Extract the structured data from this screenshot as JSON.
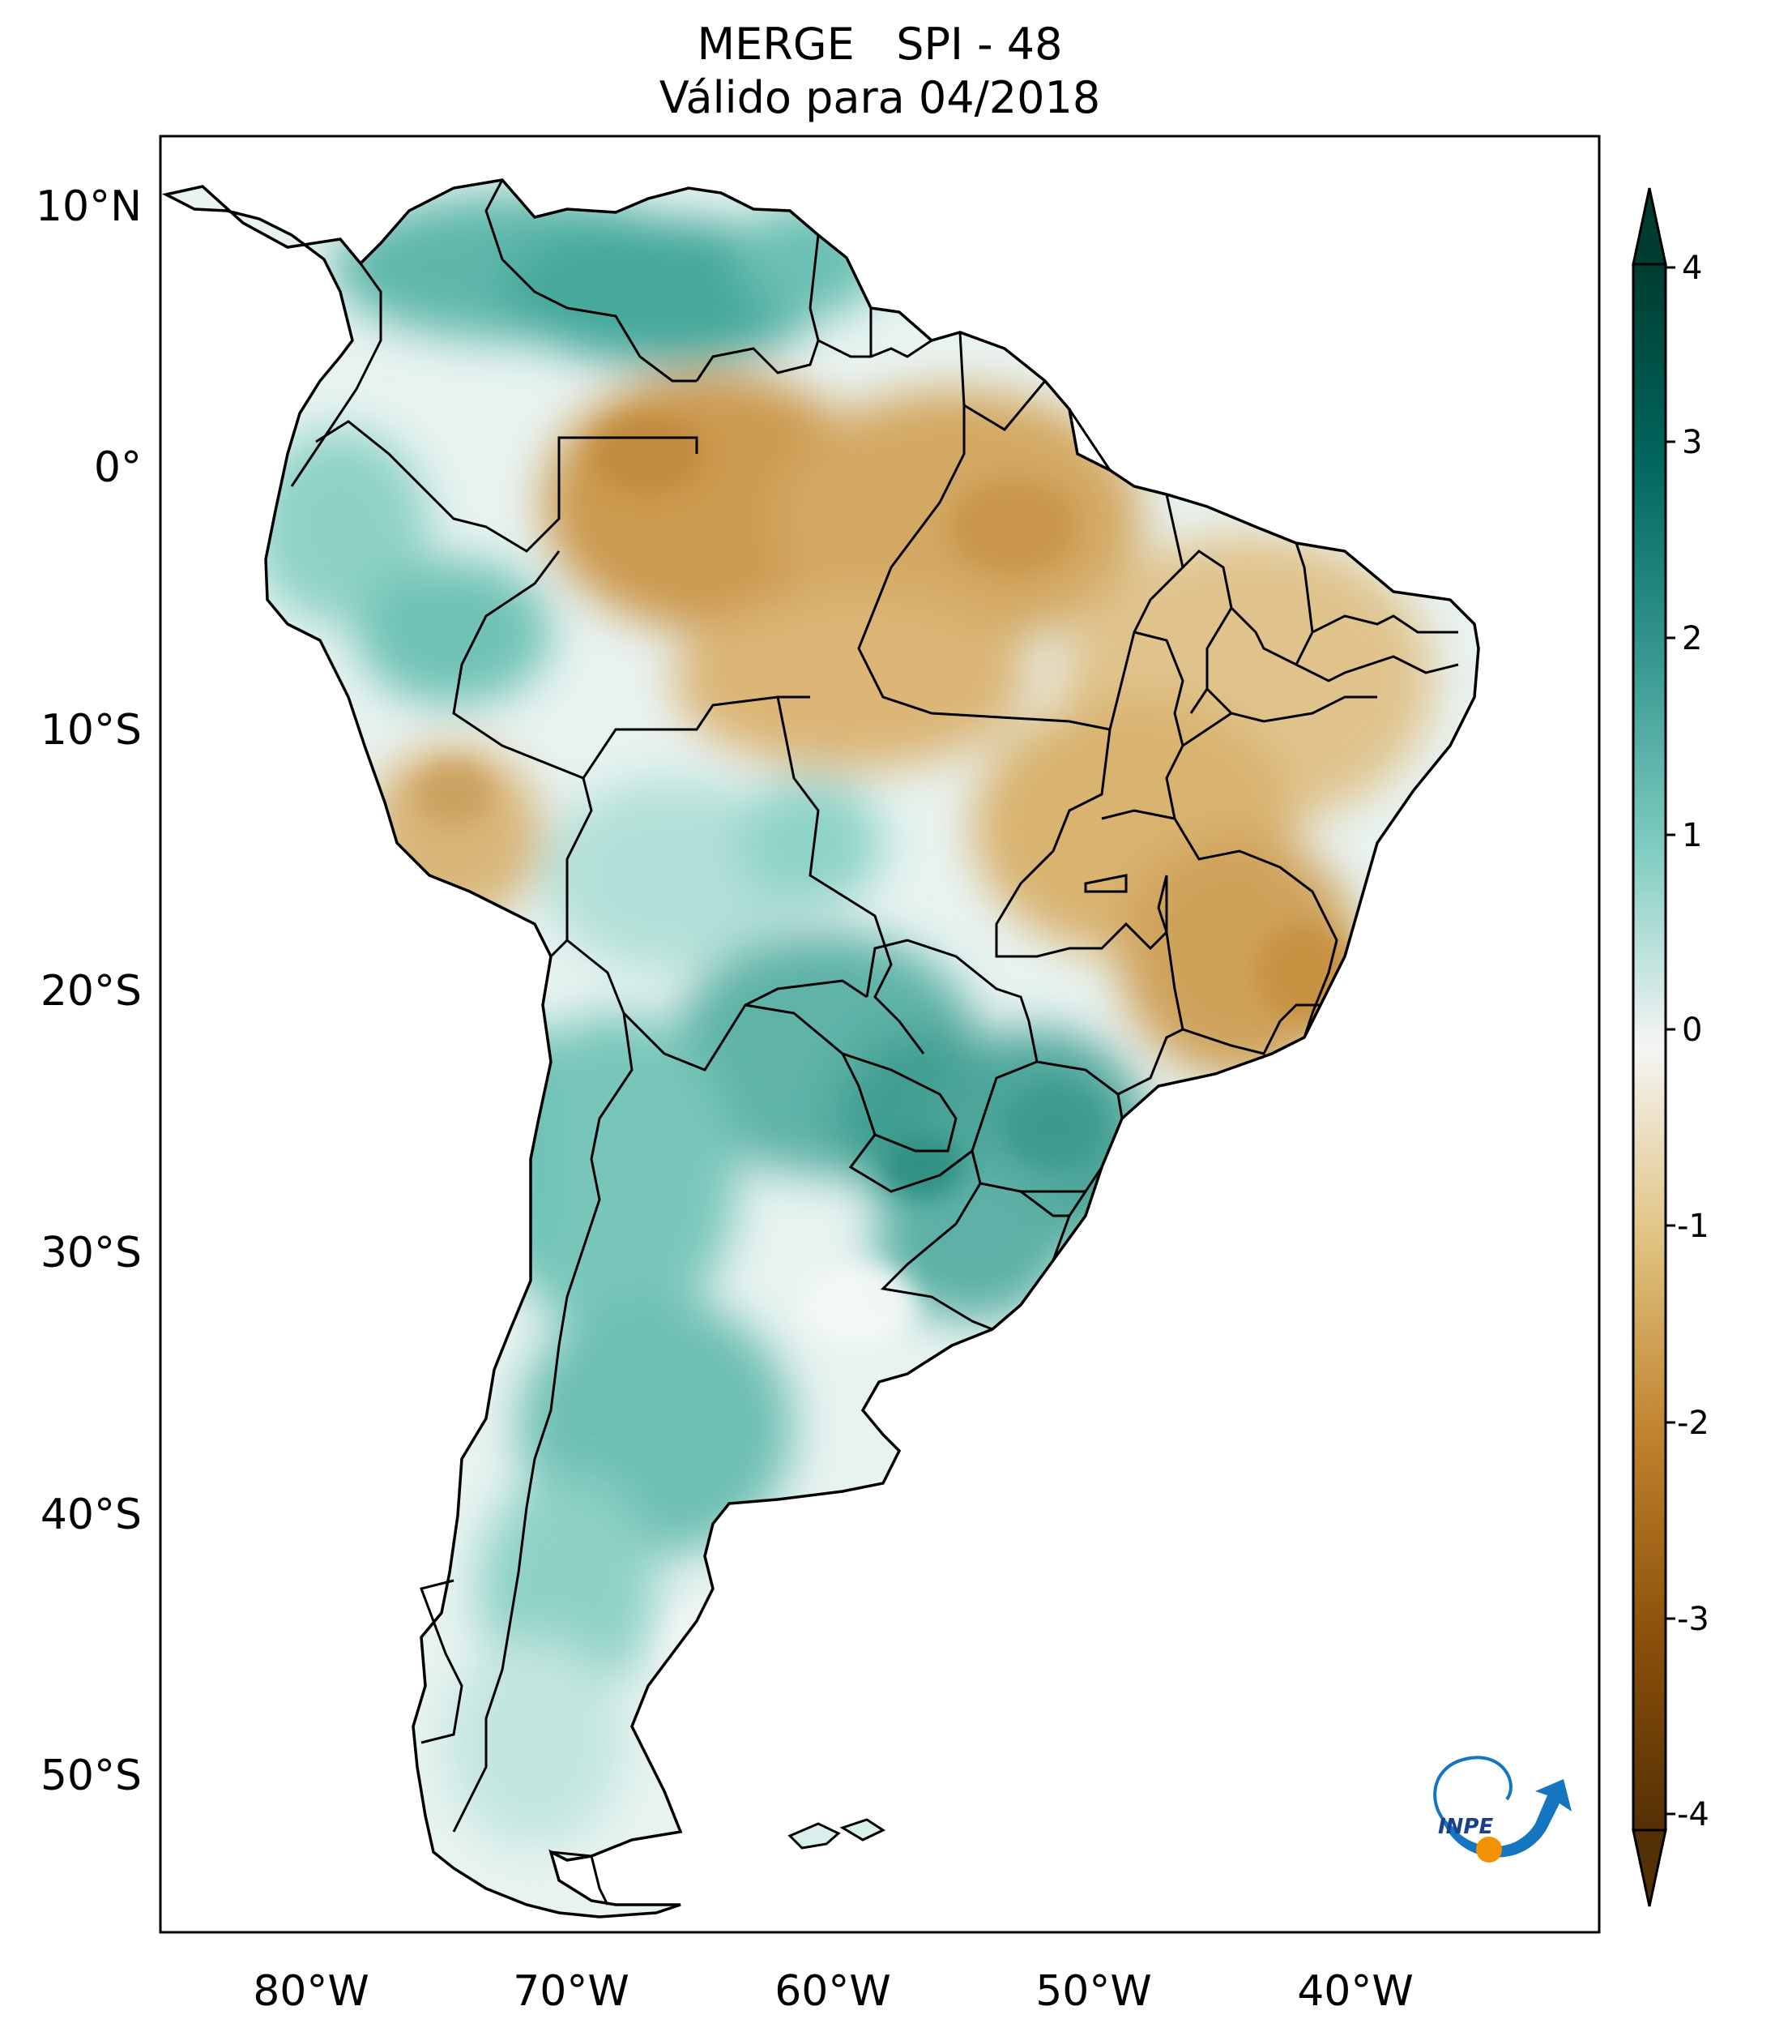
{
  "title": {
    "line1": "MERGE   SPI - 48",
    "line2": "Válido para 04/2018"
  },
  "map": {
    "region": "South America",
    "lon_range": [
      -85,
      -30
    ],
    "lat_range": [
      -56,
      13
    ],
    "lon_ticks": [
      {
        "value": -80,
        "label": "80°W"
      },
      {
        "value": -70,
        "label": "70°W"
      },
      {
        "value": -60,
        "label": "60°W"
      },
      {
        "value": -50,
        "label": "50°W"
      },
      {
        "value": -40,
        "label": "40°W"
      }
    ],
    "lat_ticks": [
      {
        "value": 10,
        "label": "10°N"
      },
      {
        "value": 0,
        "label": "0°"
      },
      {
        "value": -10,
        "label": "10°S"
      },
      {
        "value": -20,
        "label": "20°S"
      },
      {
        "value": -30,
        "label": "30°S"
      },
      {
        "value": -40,
        "label": "40°S"
      },
      {
        "value": -50,
        "label": "50°S"
      }
    ],
    "regions": [
      {
        "name": "northern-colombia-venezuela",
        "spi": 1.6
      },
      {
        "name": "amazon-north",
        "spi": -1.5
      },
      {
        "name": "northeast-brazil",
        "spi": -1.2
      },
      {
        "name": "central-brazil",
        "spi": -1.3
      },
      {
        "name": "minas-gerais",
        "spi": -1.7
      },
      {
        "name": "peru-andes",
        "spi": -1.0
      },
      {
        "name": "bolivia-east",
        "spi": 0.9
      },
      {
        "name": "paraguay",
        "spi": 2.0
      },
      {
        "name": "southern-brazil",
        "spi": 1.9
      },
      {
        "name": "argentina-north",
        "spi": 1.5
      },
      {
        "name": "patagonia",
        "spi": 0.6
      }
    ]
  },
  "colorbar": {
    "ticks": [
      "4",
      "3",
      "2",
      "1",
      "0",
      "-1",
      "-2",
      "-3",
      "-4"
    ],
    "min": -4,
    "max": 4,
    "colors": {
      "neg4": "#543005",
      "neg3": "#8c510a",
      "neg2": "#bf812d",
      "neg1": "#dfc27d",
      "zero": "#f5f5f5",
      "pos1": "#80cdc1",
      "pos2": "#35978f",
      "pos3": "#01665e",
      "pos4": "#003c30"
    }
  },
  "logo": {
    "text": "INPE",
    "icon": "inpe-logo-icon",
    "colors": {
      "blue": "#1476c0",
      "orange": "#f39200"
    }
  }
}
